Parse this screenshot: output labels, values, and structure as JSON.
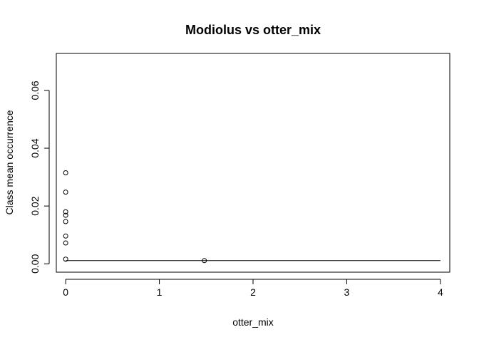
{
  "chart_data": {
    "type": "scatter",
    "title": "Modiolus vs otter_mix",
    "xlabel": "otter_mix",
    "ylabel": "Class mean occurrence",
    "xlim": [
      -0.1,
      4.1
    ],
    "ylim": [
      -0.0029,
      0.0728
    ],
    "x_ticks": [
      0,
      1,
      2,
      3,
      4
    ],
    "x_tick_labels": [
      "0",
      "1",
      "2",
      "3",
      "4"
    ],
    "y_ticks": [
      0,
      0.02,
      0.04,
      0.06
    ],
    "y_tick_labels": [
      "0.00",
      "0.02",
      "0.04",
      "0.06"
    ],
    "points": [
      {
        "x": 0,
        "y": 0.0315
      },
      {
        "x": 0,
        "y": 0.0248
      },
      {
        "x": 0,
        "y": 0.018
      },
      {
        "x": 0,
        "y": 0.0168
      },
      {
        "x": 0,
        "y": 0.0146
      },
      {
        "x": 0,
        "y": 0.0096
      },
      {
        "x": 0,
        "y": 0.0072
      },
      {
        "x": 0,
        "y": 0.0016
      },
      {
        "x": 1.48,
        "y": 0.0011
      }
    ],
    "line": {
      "x": [
        0,
        4
      ],
      "y": [
        0.0011,
        0.0011
      ]
    },
    "grid": false,
    "legend": "none"
  }
}
